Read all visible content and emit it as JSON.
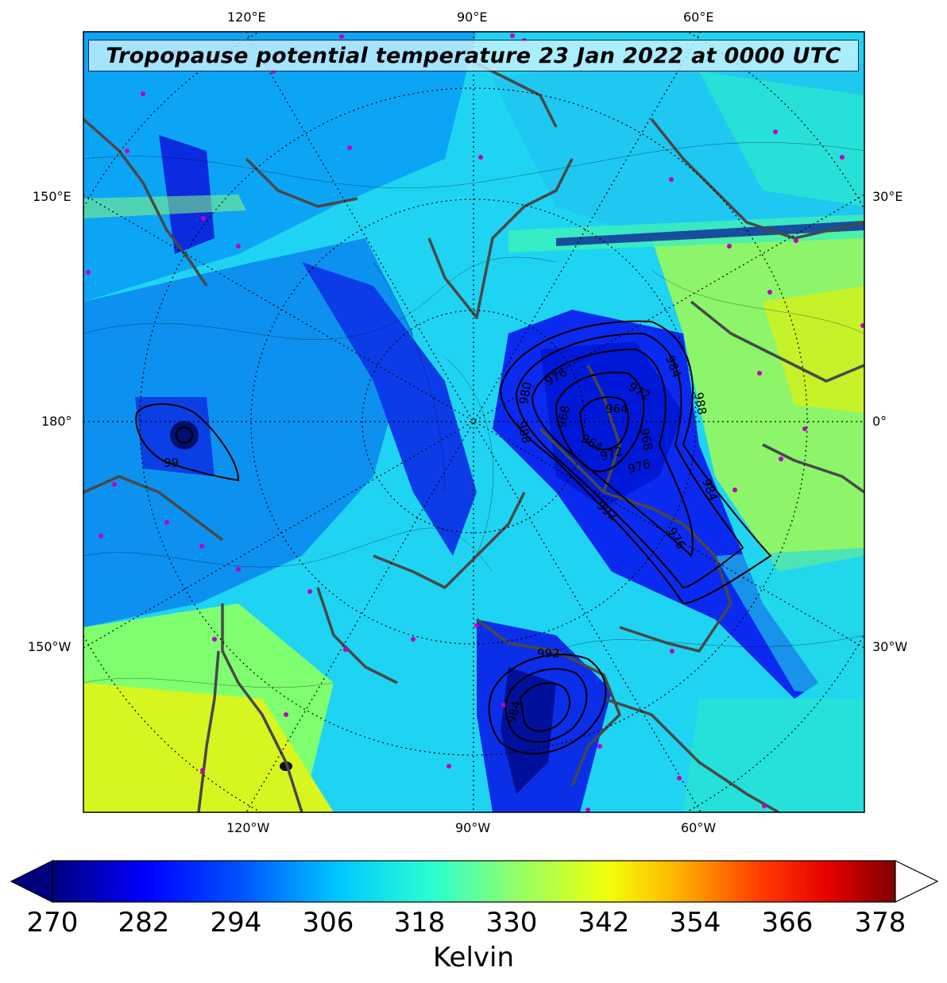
{
  "title": "Tropopause potential temperature 23 Jan 2022 at 0000 UTC",
  "longitude_labels": {
    "top": [
      "120°E",
      "90°E",
      "60°E"
    ],
    "bottom": [
      "120°W",
      "90°W",
      "60°W"
    ],
    "left": [
      "150°E",
      "180°",
      "150°W"
    ],
    "right": [
      "30°E",
      "0°",
      "30°W"
    ]
  },
  "pressure_contours": {
    "north_atlantic_low": [
      "976",
      "980",
      "964",
      "972",
      "968",
      "984",
      "988",
      "964",
      "968",
      "972",
      "976",
      "992",
      "988",
      "984",
      "976"
    ],
    "bering_low": [
      "99"
    ],
    "hudson_bay_low": [
      "992",
      "984"
    ]
  },
  "colorbar": {
    "ticks": [
      "270",
      "282",
      "294",
      "306",
      "318",
      "330",
      "342",
      "354",
      "366",
      "378"
    ],
    "label": "Kelvin",
    "min": 270,
    "max": 381,
    "colormap": "jet",
    "extend": "both",
    "colors": [
      "#00007f",
      "#0000ff",
      "#007fff",
      "#00ffff",
      "#7fff7f",
      "#ffff00",
      "#ff7f00",
      "#ff0000",
      "#7f0000"
    ]
  }
}
